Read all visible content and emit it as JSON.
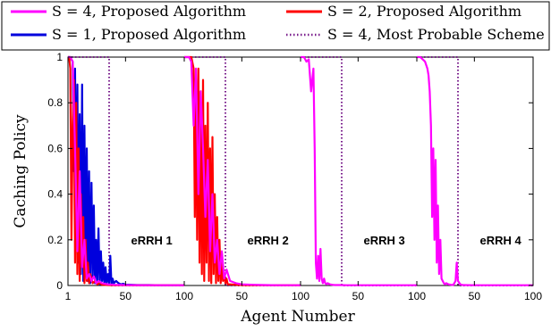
{
  "chart_data": {
    "type": "line",
    "xlabel": "Agent Number",
    "ylabel": "Caching Policy",
    "ylim": [
      0,
      1
    ],
    "yticks": [
      "0",
      "0.2",
      "0.4",
      "0.6",
      "0.8",
      "1"
    ],
    "xticks": [
      "1",
      "50",
      "100",
      "50",
      "100",
      "50",
      "100",
      "50",
      "100"
    ],
    "grid": false,
    "legend": "top",
    "panels": [
      {
        "label": "eRRH 1",
        "x_range": [
          1,
          100
        ]
      },
      {
        "label": "eRRH 2",
        "x_range": [
          1,
          100
        ]
      },
      {
        "label": "eRRH 3",
        "x_range": [
          1,
          100
        ]
      },
      {
        "label": "eRRH 4",
        "x_range": [
          1,
          100
        ]
      }
    ],
    "series": [
      {
        "name": "S = 4, Proposed Algorithm",
        "color": "#ff00ff",
        "style": "solid",
        "panels": [
          {
            "x": [
              1,
              3,
              5,
              7,
              9,
              11,
              13,
              15,
              17,
              19,
              21,
              23,
              25,
              27,
              30,
              35,
              40,
              50,
              60,
              80,
              100
            ],
            "y": [
              1,
              1,
              0.98,
              0.6,
              0.15,
              0.5,
              0.08,
              0.2,
              0.03,
              0.05,
              0.02,
              0.04,
              0.01,
              0.02,
              0.01,
              0.005,
              0.003,
              0.002,
              0.001,
              0.001,
              0.001
            ]
          },
          {
            "x": [
              1,
              3,
              5,
              7,
              9,
              11,
              13,
              15,
              17,
              19,
              21,
              23,
              25,
              27,
              29,
              31,
              33,
              35,
              37,
              40,
              45,
              50,
              60,
              70,
              80,
              100
            ],
            "y": [
              1,
              1,
              1,
              0.98,
              0.7,
              0.95,
              0.4,
              0.85,
              0.6,
              0.3,
              0.55,
              0.15,
              0.4,
              0.1,
              0.2,
              0.05,
              0.15,
              0.03,
              0.07,
              0.02,
              0.01,
              0.005,
              0.003,
              0.002,
              0.001,
              0.001
            ]
          },
          {
            "x": [
              1,
              2,
              4,
              6,
              8,
              10,
              12,
              13,
              14,
              15,
              16,
              17,
              18,
              19,
              20,
              21,
              22,
              23,
              24,
              26,
              28,
              30,
              35,
              40,
              50,
              60,
              100
            ],
            "y": [
              1,
              1,
              1,
              0.98,
              0.99,
              0.85,
              0.95,
              0.6,
              0.1,
              0.03,
              0.13,
              0.02,
              0.16,
              0.03,
              0.01,
              0.03,
              0.01,
              0.005,
              0.01,
              0.005,
              0.003,
              0.002,
              0.002,
              0.001,
              0.001,
              0.001,
              0.001
            ]
          },
          {
            "x": [
              1,
              2,
              4,
              6,
              8,
              10,
              11,
              12,
              13,
              14,
              15,
              16,
              17,
              18,
              19,
              20,
              21,
              22,
              23,
              24,
              25,
              26,
              28,
              30,
              32,
              34,
              35,
              36,
              38,
              40,
              50,
              60,
              100
            ],
            "y": [
              1,
              1,
              1,
              0.99,
              0.98,
              0.95,
              0.92,
              0.85,
              0.7,
              0.3,
              0.6,
              0.2,
              0.55,
              0.1,
              0.35,
              0.05,
              0.2,
              0.03,
              0.02,
              0.01,
              0.005,
              0.01,
              0.005,
              0.003,
              0.002,
              0.02,
              0.1,
              0.02,
              0.005,
              0.002,
              0.001,
              0.001,
              0.001
            ]
          }
        ]
      },
      {
        "name": "S = 2, Proposed Algorithm",
        "color": "#ff0000",
        "style": "solid",
        "panels": [
          {
            "x": [
              1,
              2,
              3,
              4,
              5,
              6,
              7,
              8,
              9,
              10,
              11,
              12,
              13,
              14,
              15,
              16,
              17,
              18,
              19,
              20,
              22,
              24,
              26,
              28,
              30,
              35,
              40,
              50,
              60,
              80,
              100
            ],
            "y": [
              1,
              1,
              0.95,
              0.2,
              0.7,
              0.9,
              0.1,
              0.8,
              0.05,
              0.6,
              0.02,
              0.4,
              0.1,
              0.3,
              0.01,
              0.2,
              0.02,
              0.1,
              0.01,
              0.05,
              0.01,
              0.02,
              0.005,
              0.01,
              0.003,
              0.002,
              0.001,
              0.001,
              0.001,
              0.001,
              0.001
            ]
          },
          {
            "x": [
              1,
              3,
              5,
              7,
              9,
              10,
              11,
              12,
              13,
              14,
              15,
              16,
              17,
              18,
              19,
              20,
              21,
              22,
              23,
              24,
              25,
              26,
              27,
              28,
              29,
              30,
              31,
              32,
              33,
              34,
              35,
              36,
              37,
              38,
              40,
              45,
              50,
              60,
              70,
              80,
              100
            ],
            "y": [
              1,
              1,
              1,
              1,
              0.95,
              0.3,
              0.9,
              0.2,
              0.95,
              0.1,
              0.85,
              0.05,
              0.9,
              0.02,
              0.7,
              0.1,
              0.8,
              0.02,
              0.6,
              0.01,
              0.65,
              0.05,
              0.4,
              0.01,
              0.3,
              0.02,
              0.2,
              0.01,
              0.1,
              0.02,
              0.05,
              0.01,
              0.03,
              0.005,
              0.005,
              0.003,
              0.002,
              0.001,
              0.001,
              0.001,
              0.001
            ]
          }
        ]
      },
      {
        "name": "S = 1, Proposed Algorithm",
        "color": "#0000dd",
        "style": "solid",
        "panels": [
          {
            "x": [
              1,
              2,
              3,
              4,
              5,
              6,
              7,
              8,
              9,
              10,
              11,
              12,
              13,
              14,
              15,
              16,
              17,
              18,
              19,
              20,
              21,
              22,
              23,
              24,
              25,
              26,
              27,
              28,
              29,
              30,
              31,
              32,
              33,
              34,
              35,
              36,
              37,
              38,
              39,
              40,
              42,
              44,
              46,
              48,
              50,
              55,
              60,
              70,
              80,
              90,
              100
            ],
            "y": [
              1,
              1,
              1,
              0.99,
              0.98,
              0.5,
              0.95,
              0.3,
              0.88,
              0.1,
              0.75,
              0.05,
              0.88,
              0.02,
              0.7,
              0.1,
              0.6,
              0.02,
              0.5,
              0.01,
              0.45,
              0.03,
              0.35,
              0.01,
              0.2,
              0.02,
              0.25,
              0.005,
              0.15,
              0.02,
              0.1,
              0.005,
              0.08,
              0.01,
              0.05,
              0.01,
              0.13,
              0.005,
              0.03,
              0.01,
              0.02,
              0.01,
              0.005,
              0.008,
              0.004,
              0.003,
              0.002,
              0.002,
              0.001,
              0.001,
              0.001
            ]
          }
        ]
      },
      {
        "name": "S = 4, Most Probable Scheme",
        "color": "#7a1e8c",
        "style": "dotted",
        "panels": [
          {
            "x": [
              1,
              36,
              36,
              100
            ],
            "y": [
              1,
              1,
              0,
              0
            ]
          },
          {
            "x": [
              1,
              36,
              36,
              100
            ],
            "y": [
              1,
              1,
              0,
              0
            ]
          },
          {
            "x": [
              1,
              36,
              36,
              100
            ],
            "y": [
              1,
              1,
              0,
              0
            ]
          },
          {
            "x": [
              1,
              36,
              36,
              100
            ],
            "y": [
              1,
              1,
              0,
              0
            ]
          }
        ]
      }
    ]
  }
}
